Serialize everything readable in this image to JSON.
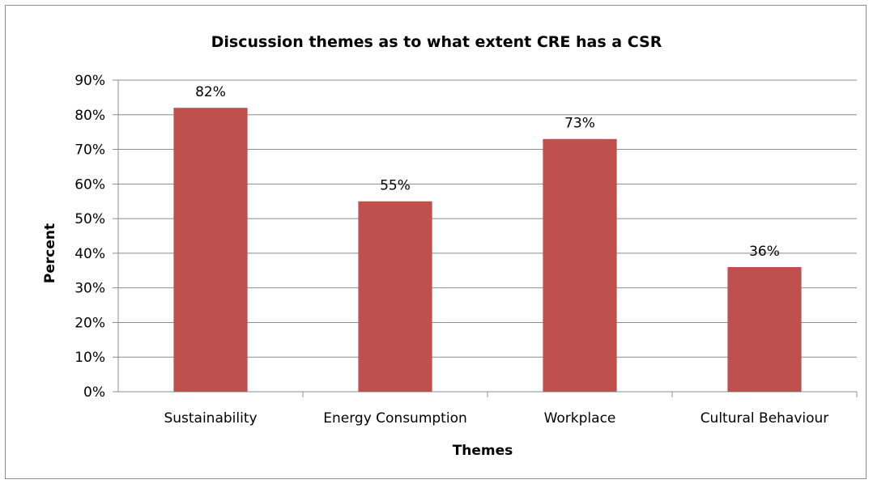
{
  "chart_data": {
    "type": "bar",
    "title": "Discussion themes as to what extent CRE has a CSR",
    "xlabel": "Themes",
    "ylabel": "Percent",
    "categories": [
      "Sustainability",
      "Energy Consumption",
      "Workplace",
      "Cultural Behaviour"
    ],
    "values": [
      82,
      55,
      73,
      36
    ],
    "data_labels": [
      "82%",
      "55%",
      "73%",
      "36%"
    ],
    "ylim": [
      0,
      90
    ],
    "y_ticks": [
      0,
      10,
      20,
      30,
      40,
      50,
      60,
      70,
      80,
      90
    ],
    "y_tick_labels": [
      "0%",
      "10%",
      "20%",
      "30%",
      "40%",
      "50%",
      "60%",
      "70%",
      "80%",
      "90%"
    ],
    "grid": true,
    "legend": "none",
    "bar_color": "#c0504d",
    "gridline_color": "#8c8c8c"
  }
}
